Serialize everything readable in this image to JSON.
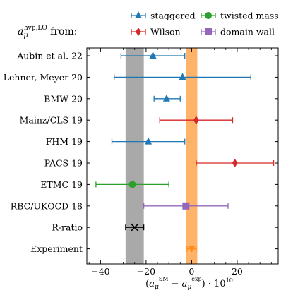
{
  "chart_data": {
    "type": "scatter",
    "title_main": "a",
    "title_sub": "μ",
    "title_sup": "hvp,LO",
    "title_suffix": " from:",
    "xlabel": "(a_μ^SM − a_μ^exp) · 10^10",
    "xlim": [
      -46,
      38
    ],
    "x_ticks": [
      -40,
      -20,
      0,
      20
    ],
    "grid": false,
    "legend": {
      "placement": "top",
      "entries": [
        {
          "name": "staggered",
          "color": "#1f77b4",
          "marker": "triangle-up"
        },
        {
          "name": "twisted mass",
          "color": "#2ca02c",
          "marker": "circle"
        },
        {
          "name": "Wilson",
          "color": "#d62728",
          "marker": "diamond"
        },
        {
          "name": "domain wall",
          "color": "#9467bd",
          "marker": "square"
        }
      ]
    },
    "bands": [
      {
        "kind": "gray",
        "x_range": [
          -29,
          -21
        ],
        "color": "#9a9a9a"
      },
      {
        "kind": "orange",
        "x_range": [
          -2.5,
          2.5
        ],
        "color": "#ffa64d"
      }
    ],
    "categories": [
      "Aubin et al. 22",
      "Lehner, Meyer 20",
      "BMW 20",
      "Mainz/CLS 19",
      "FHM 19",
      "PACS 19",
      "ETMC 19",
      "RBC/UKQCD 18",
      "R-ratio",
      "Experiment"
    ],
    "points": [
      {
        "label": "Aubin et al. 22",
        "x": -17,
        "xmin": -31,
        "xmax": -3,
        "marker": "triangle-up",
        "color": "#1f77b4"
      },
      {
        "label": "Lehner, Meyer 20",
        "x": -4,
        "xmin": -34,
        "xmax": 26,
        "marker": "triangle-up",
        "color": "#1f77b4"
      },
      {
        "label": "BMW 20",
        "x": -11,
        "xmin": -16.5,
        "xmax": -5,
        "marker": "triangle-up",
        "color": "#1f77b4"
      },
      {
        "label": "Mainz/CLS 19",
        "x": 2,
        "xmin": -14,
        "xmax": 18,
        "marker": "diamond",
        "color": "#d62728"
      },
      {
        "label": "FHM 19",
        "x": -19,
        "xmin": -35,
        "xmax": -3,
        "marker": "triangle-up",
        "color": "#1f77b4"
      },
      {
        "label": "PACS 19",
        "x": 19,
        "xmin": 2,
        "xmax": 36,
        "marker": "diamond",
        "color": "#d62728"
      },
      {
        "label": "ETMC 19",
        "x": -26,
        "xmin": -42,
        "xmax": -10,
        "marker": "circle",
        "color": "#2ca02c"
      },
      {
        "label": "RBC/UKQCD 18",
        "x": -2.5,
        "xmin": -21,
        "xmax": 16,
        "marker": "square",
        "color": "#9467bd"
      },
      {
        "label": "R-ratio",
        "x": -25,
        "xmin": -29,
        "xmax": -21,
        "marker": "x",
        "color": "#000000"
      },
      {
        "label": "Experiment",
        "x": 0,
        "xmin": -2,
        "xmax": 2,
        "marker": "triangle-down",
        "color": "#ff8c1a"
      }
    ]
  }
}
